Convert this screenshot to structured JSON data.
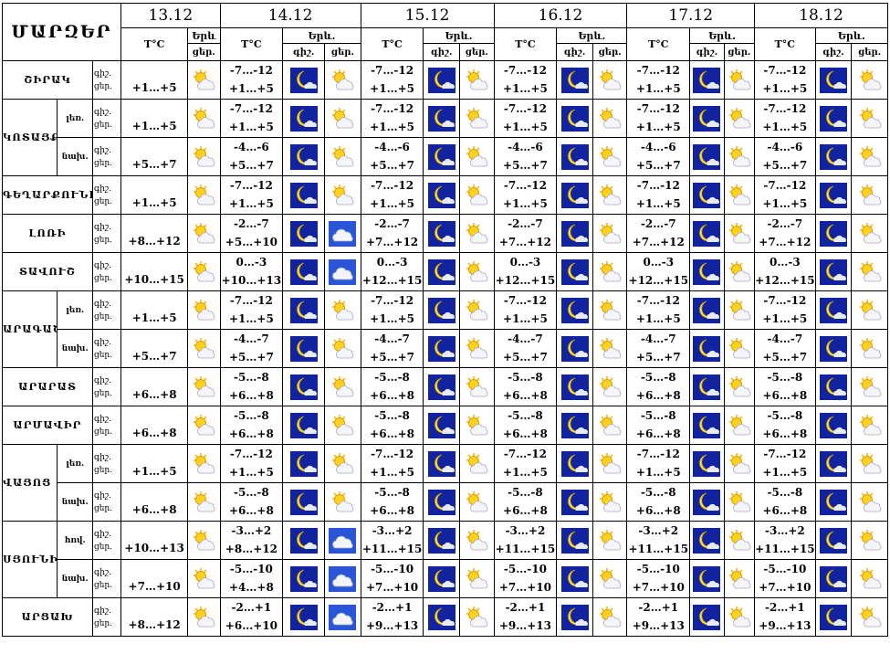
{
  "header": {
    "title": "ՄԱՐԶԵՐ",
    "dates": [
      "13.12",
      "14.12",
      "15.12",
      "16.12",
      "17.12",
      "18.12"
    ],
    "temp_label": "T°C",
    "weather_label_first": "Երև",
    "weather_label": "Երև.",
    "night_label": "գիշ.",
    "day_label": "ցեր."
  },
  "row_tod": {
    "night": "գիշ.",
    "day": "ցեր."
  },
  "icons": {
    "sun_cloud": "sun-cloud-icon",
    "moon_cloud": "moon-cloud-icon",
    "cloud": "cloud-icon"
  },
  "rows": [
    {
      "region": "ՇԻՐԱԿ",
      "sub": "",
      "d13": "+1…+5",
      "night": "-7…-12",
      "day": "+1…+5",
      "d14_day_icon": "sun_cloud"
    },
    {
      "region": "ԿՈՏԱՅՔ",
      "sub": "լեռ.",
      "d13": "+1…+5",
      "night": "-7…-12",
      "day": "+1…+5",
      "d14_day_icon": "sun_cloud"
    },
    {
      "region": "ԿՈՏԱՅՔ",
      "sub": "նախ.",
      "d13": "+5…+7",
      "night": "-4…-6",
      "day": "+5…+7",
      "d14_day_icon": "sun_cloud"
    },
    {
      "region": "ԳԵՂԱՐՔՈՒՆԻՔ",
      "sub": "",
      "d13": "+1…+5",
      "night": "-7…-12",
      "day": "+1…+5",
      "d14_day_icon": "sun_cloud"
    },
    {
      "region": "ԼՈՌԻ",
      "sub": "",
      "d13": "+8…+12",
      "night": "-2…-7",
      "day": "+5…+10",
      "day2": "+7…+12",
      "d14_day_icon": "cloud"
    },
    {
      "region": "ՏԱՎՈՒՇ",
      "sub": "",
      "d13": "+10…+15",
      "night": "0…-3",
      "day": "+10…+13",
      "day2": "+12…+15",
      "d14_day_icon": "cloud"
    },
    {
      "region": "ԱՐԱԳԱԾՈՏՆ",
      "sub": "լեռ.",
      "d13": "+1…+5",
      "night": "-7…-12",
      "day": "+1…+5",
      "d14_day_icon": "sun_cloud"
    },
    {
      "region": "ԱՐԱԳԱԾՈՏՆ",
      "sub": "նախ.",
      "d13": "+5…+7",
      "night": "-4…-7",
      "day": "+5…+7",
      "d14_day_icon": "sun_cloud"
    },
    {
      "region": "ԱՐԱՐԱՏ",
      "sub": "",
      "d13": "+6…+8",
      "night": "-5…-8",
      "day": "+6…+8",
      "d14_day_icon": "sun_cloud"
    },
    {
      "region": "ԱՐՄԱՎԻՐ",
      "sub": "",
      "d13": "+6…+8",
      "night": "-5…-8",
      "day": "+6…+8",
      "d14_day_icon": "sun_cloud"
    },
    {
      "region": "ՎԱՅՈՑ ՁՈՐ",
      "sub": "լեռ.",
      "d13": "+1…+5",
      "night": "-7…-12",
      "day": "+1…+5",
      "d14_day_icon": "sun_cloud"
    },
    {
      "region": "ՎԱՅՈՑ ՁՈՐ",
      "sub": "նախ.",
      "d13": "+6…+8",
      "night": "-5…-8",
      "day": "+6…+8",
      "d14_day_icon": "sun_cloud"
    },
    {
      "region": "ՍՅՈՒՆԻՔ",
      "sub": "հով.",
      "d13": "+10…+13",
      "night": "-3…+2",
      "day": "+8…+12",
      "day2": "+11…+15",
      "d14_day_icon": "cloud"
    },
    {
      "region": "ՍՅՈՒՆԻՔ",
      "sub": "նախ.",
      "d13": "+7…+10",
      "night": "-5…-10",
      "day": "+4…+8",
      "day2": "+7…+10",
      "d14_day_icon": "cloud"
    },
    {
      "region": "ԱՐՑԱԽ",
      "sub": "",
      "d13": "+8…+12",
      "night": "-2…+1",
      "day": "+6…+10",
      "day2": "+9…+13",
      "d14_day_icon": "cloud"
    }
  ]
}
